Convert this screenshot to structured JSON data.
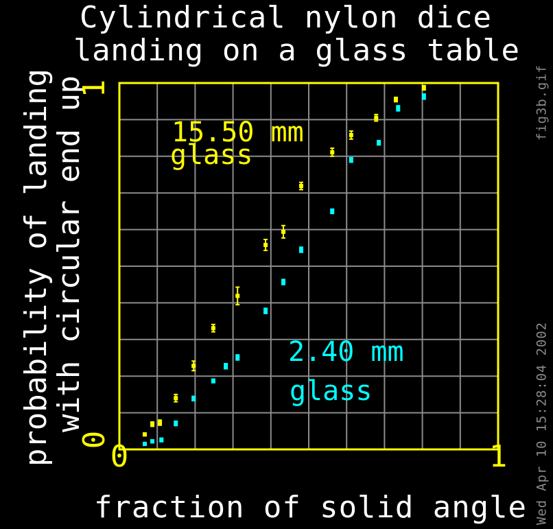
{
  "chart_data": {
    "type": "scatter",
    "title": [
      "Cylindrical nylon dice",
      "landing on a glass table"
    ],
    "x_label": "fraction of solid angle",
    "y_label": [
      "probability of landing",
      "with circular end up"
    ],
    "xlim": [
      0,
      1
    ],
    "ylim": [
      0,
      1
    ],
    "xticks": [
      0,
      1
    ],
    "yticks": [
      0,
      1
    ],
    "xgrid": [
      0,
      0.1,
      0.2,
      0.3,
      0.4,
      0.5,
      0.6,
      0.7,
      0.8,
      0.9,
      1
    ],
    "ygrid": [
      0,
      0.1,
      0.2,
      0.3,
      0.4,
      0.5,
      0.6,
      0.7,
      0.8,
      0.9,
      1
    ],
    "grid": true,
    "grid_color": "#8c8c8c",
    "frame_color": "#ffff00",
    "annotations": [
      {
        "text": "15.50 mm",
        "color": "#ffff00"
      },
      {
        "text": "glass",
        "color": "#ffff00"
      },
      {
        "text": "2.40 mm",
        "color": "#00ffff"
      },
      {
        "text": "glass",
        "color": "#00ffff"
      }
    ],
    "side_texts": [
      "Wed Apr 10 15:28:04 2002",
      "fig3b.gif"
    ],
    "series": [
      {
        "name": "15.50 mm glass",
        "color": "#ffff00",
        "x": [
          0.067,
          0.087,
          0.107,
          0.149,
          0.196,
          0.248,
          0.312,
          0.386,
          0.433,
          0.48,
          0.562,
          0.612,
          0.678,
          0.73,
          0.804
        ],
        "values": [
          0.041,
          0.069,
          0.073,
          0.14,
          0.228,
          0.331,
          0.419,
          0.558,
          0.594,
          0.719,
          0.811,
          0.858,
          0.905,
          0.955,
          0.987
        ],
        "errors": [
          0.004,
          0.006,
          0.007,
          0.01,
          0.013,
          0.01,
          0.024,
          0.015,
          0.017,
          0.01,
          0.011,
          0.011,
          0.009,
          0.006,
          0.006
        ]
      },
      {
        "name": "2.40 mm glass",
        "color": "#00ffff",
        "x": [
          0.067,
          0.087,
          0.111,
          0.149,
          0.196,
          0.248,
          0.281,
          0.312,
          0.386,
          0.433,
          0.48,
          0.562,
          0.612,
          0.685,
          0.736,
          0.804
        ],
        "values": [
          0.015,
          0.022,
          0.026,
          0.071,
          0.139,
          0.187,
          0.227,
          0.251,
          0.378,
          0.457,
          0.545,
          0.65,
          0.79,
          0.837,
          0.931,
          0.963
        ],
        "errors": [
          0.004,
          0.004,
          0.005,
          0.006,
          0.006,
          0.005,
          0.007,
          0.007,
          0.007,
          0.007,
          0.007,
          0.006,
          0.006,
          0.006,
          0.007,
          0.007
        ]
      }
    ]
  }
}
